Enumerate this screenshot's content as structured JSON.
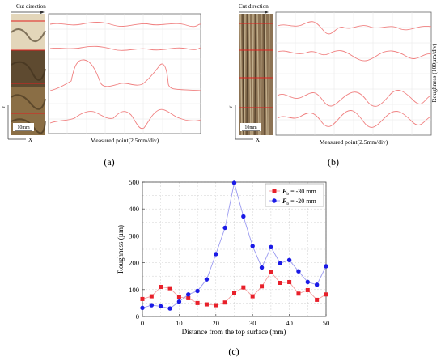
{
  "panels": {
    "a": {
      "caption": "(a)",
      "cut_direction": "Cut direction",
      "scale_bar": "10mm",
      "axis_x": "X",
      "axis_y": "Y",
      "xlabel": "Measured point(2.5mm/div)"
    },
    "b": {
      "caption": "(b)",
      "cut_direction": "Cut direction",
      "scale_bar": "10mm",
      "axis_x": "X",
      "axis_y": "Y",
      "xlabel": "Measured point(2.5mm/div)",
      "ylabel": "Roughness (100µm/div)"
    }
  },
  "colors": {
    "profile": "#f08080",
    "series_a": "#e8202a",
    "series_b": "#1a1ae6",
    "series_a_line": "#f4a0a0",
    "series_b_line": "#9a9af0",
    "wood_light": "#c8b898",
    "wood_dark": "#5a4632"
  },
  "chart_data": {
    "type": "line",
    "caption": "(c)",
    "xlabel": "Distance from the top surface (mm)",
    "ylabel": "Roughness (µm)",
    "xlim": [
      0,
      50
    ],
    "ylim": [
      0,
      500
    ],
    "xticks": [
      0,
      10,
      20,
      30,
      40,
      50
    ],
    "yticks": [
      0,
      100,
      200,
      300,
      400,
      500
    ],
    "grid": true,
    "legend_position": "top-right",
    "series": [
      {
        "name_prefix": "F",
        "name_sub": "b",
        "name_suffix": " = -30 mm",
        "marker": "square",
        "x": [
          0,
          2.5,
          5,
          7.5,
          10,
          12.5,
          15,
          17.5,
          20,
          22.5,
          25,
          27.5,
          30,
          32.5,
          35,
          37.5,
          40,
          42.5,
          45,
          47.5,
          50
        ],
        "y": [
          65,
          75,
          110,
          105,
          72,
          68,
          50,
          45,
          42,
          52,
          88,
          108,
          75,
          112,
          165,
          125,
          128,
          85,
          98,
          62,
          82
        ]
      },
      {
        "name_prefix": "F",
        "name_sub": "b",
        "name_suffix": " = -20 mm",
        "marker": "circle",
        "x": [
          0,
          2.5,
          5,
          7.5,
          10,
          12.5,
          15,
          17.5,
          20,
          22.5,
          25,
          27.5,
          30,
          32.5,
          35,
          37.5,
          40,
          42.5,
          45,
          47.5,
          50
        ],
        "y": [
          32,
          42,
          38,
          30,
          55,
          82,
          95,
          138,
          232,
          330,
          497,
          372,
          262,
          182,
          258,
          198,
          210,
          168,
          128,
          118,
          187
        ]
      }
    ]
  }
}
